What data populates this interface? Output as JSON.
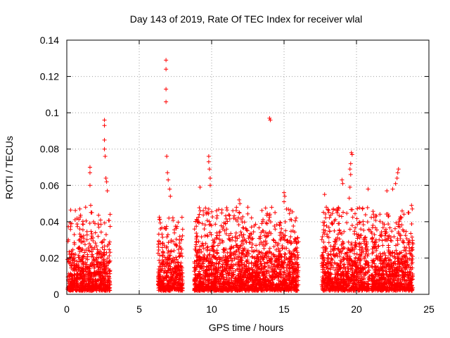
{
  "chart_data": {
    "type": "scatter",
    "title": "Day 143 of 2019, Rate Of TEC Index for receiver wlal",
    "xlabel": "GPS time / hours",
    "ylabel": "ROTI / TECUs",
    "xlim": [
      0,
      25
    ],
    "ylim": [
      0,
      0.14
    ],
    "xticks": [
      0,
      5,
      10,
      15,
      20,
      25
    ],
    "xtick_labels": [
      "0",
      "5",
      "10",
      "15",
      "20",
      "25"
    ],
    "yticks": [
      0,
      0.02,
      0.04,
      0.06,
      0.08,
      0.1,
      0.12,
      0.14
    ],
    "ytick_labels": [
      "0",
      "0.02",
      "0.04",
      "0.06",
      "0.08",
      "0.1",
      "0.12",
      "0.14"
    ],
    "grid": true,
    "marker": "+",
    "marker_color": "#ff0000",
    "notable_points": [
      {
        "x": 6.85,
        "y": 0.129
      },
      {
        "x": 6.85,
        "y": 0.124
      },
      {
        "x": 6.85,
        "y": 0.113
      },
      {
        "x": 6.85,
        "y": 0.106
      },
      {
        "x": 6.9,
        "y": 0.076
      },
      {
        "x": 6.95,
        "y": 0.067
      },
      {
        "x": 2.6,
        "y": 0.096
      },
      {
        "x": 2.6,
        "y": 0.093
      },
      {
        "x": 2.6,
        "y": 0.085
      },
      {
        "x": 2.6,
        "y": 0.08
      },
      {
        "x": 2.65,
        "y": 0.076
      },
      {
        "x": 2.7,
        "y": 0.064
      },
      {
        "x": 2.75,
        "y": 0.062
      },
      {
        "x": 2.8,
        "y": 0.057
      },
      {
        "x": 1.6,
        "y": 0.07
      },
      {
        "x": 1.6,
        "y": 0.067
      },
      {
        "x": 1.6,
        "y": 0.06
      },
      {
        "x": 1.65,
        "y": 0.049
      },
      {
        "x": 14.0,
        "y": 0.097
      },
      {
        "x": 14.05,
        "y": 0.096
      },
      {
        "x": 9.8,
        "y": 0.076
      },
      {
        "x": 9.8,
        "y": 0.073
      },
      {
        "x": 9.85,
        "y": 0.069
      },
      {
        "x": 9.9,
        "y": 0.064
      },
      {
        "x": 9.9,
        "y": 0.06
      },
      {
        "x": 9.2,
        "y": 0.059
      },
      {
        "x": 7.0,
        "y": 0.063
      },
      {
        "x": 7.1,
        "y": 0.058
      },
      {
        "x": 7.15,
        "y": 0.054
      },
      {
        "x": 19.65,
        "y": 0.078
      },
      {
        "x": 19.7,
        "y": 0.077
      },
      {
        "x": 19.6,
        "y": 0.072
      },
      {
        "x": 19.55,
        "y": 0.069
      },
      {
        "x": 19.6,
        "y": 0.066
      },
      {
        "x": 19.55,
        "y": 0.059
      },
      {
        "x": 19.5,
        "y": 0.053
      },
      {
        "x": 22.9,
        "y": 0.069
      },
      {
        "x": 22.85,
        "y": 0.067
      },
      {
        "x": 22.8,
        "y": 0.064
      },
      {
        "x": 22.7,
        "y": 0.061
      },
      {
        "x": 22.5,
        "y": 0.058
      },
      {
        "x": 22.1,
        "y": 0.057
      },
      {
        "x": 19.0,
        "y": 0.063
      },
      {
        "x": 19.05,
        "y": 0.061
      },
      {
        "x": 20.8,
        "y": 0.058
      },
      {
        "x": 17.8,
        "y": 0.055
      },
      {
        "x": 15.0,
        "y": 0.056
      },
      {
        "x": 15.05,
        "y": 0.054
      },
      {
        "x": 15.0,
        "y": 0.051
      },
      {
        "x": 12.5,
        "y": 0.048
      },
      {
        "x": 18.4,
        "y": 0.047
      },
      {
        "x": 23.8,
        "y": 0.049
      },
      {
        "x": 23.85,
        "y": 0.047
      },
      {
        "x": 0.9,
        "y": 0.047
      },
      {
        "x": 1.3,
        "y": 0.048
      },
      {
        "x": 11.9,
        "y": 0.052
      },
      {
        "x": 11.95,
        "y": 0.05
      }
    ],
    "clusters": [
      {
        "x_start": 0.05,
        "x_end": 3.0,
        "y_base_max": 0.022,
        "y_spike_max": 0.045
      },
      {
        "x_start": 6.3,
        "x_end": 8.0,
        "y_base_max": 0.024,
        "y_spike_max": 0.042
      },
      {
        "x_start": 8.8,
        "x_end": 16.0,
        "y_base_max": 0.026,
        "y_spike_max": 0.046
      },
      {
        "x_start": 17.6,
        "x_end": 20.9,
        "y_base_max": 0.026,
        "y_spike_max": 0.046
      },
      {
        "x_start": 21.0,
        "x_end": 23.9,
        "y_base_max": 0.026,
        "y_spike_max": 0.044
      }
    ]
  }
}
